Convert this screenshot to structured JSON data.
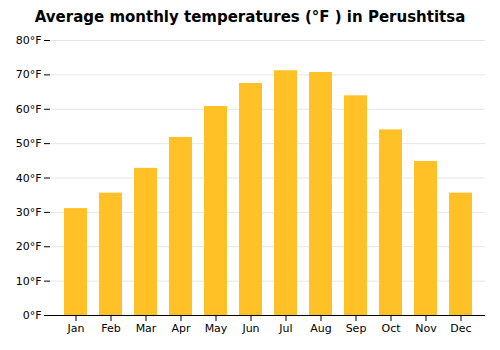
{
  "chart_data": {
    "type": "bar",
    "title": "Average monthly temperatures (°F ) in Perushtitsa",
    "categories": [
      "Jan",
      "Feb",
      "Mar",
      "Apr",
      "May",
      "Jun",
      "Jul",
      "Aug",
      "Sep",
      "Oct",
      "Nov",
      "Dec"
    ],
    "values": [
      31.1,
      35.6,
      42.8,
      51.8,
      60.8,
      67.5,
      71.2,
      70.7,
      63.9,
      54.0,
      44.8,
      35.6
    ],
    "color": "#FFC125",
    "ylim": [
      0,
      80
    ],
    "yticks": [
      {
        "value": 0,
        "label": "0°F"
      },
      {
        "value": 10,
        "label": "10°F"
      },
      {
        "value": 20,
        "label": "20°F"
      },
      {
        "value": 30,
        "label": "30°F"
      },
      {
        "value": 40,
        "label": "40°F"
      },
      {
        "value": 50,
        "label": "50°F"
      },
      {
        "value": 60,
        "label": "60°F"
      },
      {
        "value": 70,
        "label": "70°F"
      },
      {
        "value": 80,
        "label": "80°F"
      }
    ],
    "grid": true
  }
}
